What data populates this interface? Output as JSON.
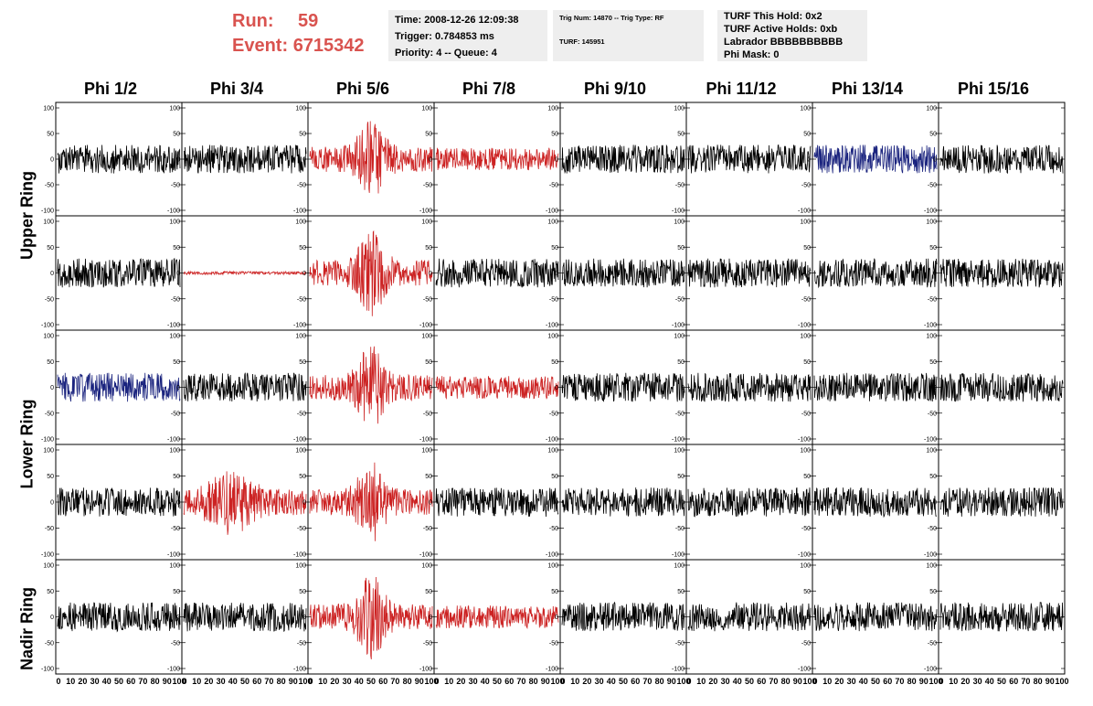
{
  "header": {
    "run_label": "Run:",
    "run_value": "59",
    "event_label": "Event:",
    "event_value": "6715342",
    "time": "Time: 2008-12-26 12:09:38",
    "trigger": "Trigger: 0.784853 ms",
    "priority": "Priority: 4 -- Queue: 4",
    "trig_num": "Trig Num: 14870 -- Trig Type: RF",
    "turf": "TURF: 145951",
    "turf_hold": "TURF This Hold: 0x2",
    "turf_active": "TURF Active Holds: 0xb",
    "labrador": "Labrador BBBBBBBBBB",
    "phi_mask": "Phi Mask: 0"
  },
  "columns": [
    "Phi 1/2",
    "Phi 3/4",
    "Phi 5/6",
    "Phi 7/8",
    "Phi 9/10",
    "Phi 11/12",
    "Phi 13/14",
    "Phi 15/16"
  ],
  "rings": {
    "upper": "Upper Ring",
    "lower": "Lower Ring",
    "nadir": "Nadir Ring"
  },
  "axis": {
    "y_ticks": [
      "100",
      "50",
      "0",
      "-50",
      "-100"
    ],
    "x_ticks": [
      "0",
      "10",
      "20",
      "30",
      "40",
      "50",
      "60",
      "70",
      "80",
      "90",
      "100"
    ]
  },
  "colors": {
    "trace_normal": "#000000",
    "trace_triggered": "#cc2222",
    "trace_hold": "#1a237e",
    "header_red": "#d9534f",
    "info_bg": "#eeeeee"
  },
  "trace_colors": [
    [
      "normal",
      "normal",
      "triggered",
      "triggered",
      "normal",
      "normal",
      "hold",
      "normal"
    ],
    [
      "normal",
      "triggered",
      "triggered",
      "normal",
      "normal",
      "normal",
      "normal",
      "normal"
    ],
    [
      "hold",
      "normal",
      "triggered",
      "triggered",
      "normal",
      "normal",
      "normal",
      "normal"
    ],
    [
      "normal",
      "triggered",
      "triggered",
      "normal",
      "normal",
      "normal",
      "normal",
      "normal"
    ],
    [
      "normal",
      "normal",
      "triggered",
      "triggered",
      "normal",
      "normal",
      "normal",
      "normal"
    ]
  ]
}
